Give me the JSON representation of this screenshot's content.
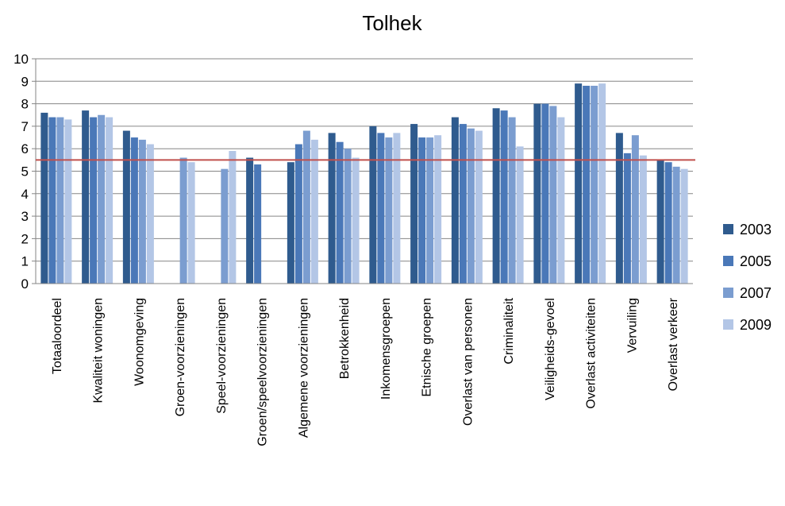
{
  "chart_data": {
    "type": "bar",
    "title": "Tolhek",
    "xlabel": "",
    "ylabel": "",
    "ylim": [
      0,
      10
    ],
    "yticks": [
      0,
      1,
      2,
      3,
      4,
      5,
      6,
      7,
      8,
      9,
      10
    ],
    "grid": true,
    "legend_position": "right",
    "reference_line": {
      "value": 5.5,
      "color": "#c0504d"
    },
    "categories": [
      "Totaaloordeel",
      "Kwaliteit woningen",
      "Woonomgeving",
      "Groen-voorzieningen",
      "Speel-voorzieningen",
      "Groen/speelvoorzieningen",
      "Algemene voorzieningen",
      "Betrokkenheid",
      "Inkomensgroepen",
      "Etnische groepen",
      "Overlast van personen",
      "Criminaliteit",
      "Veiligheids-gevoel",
      "Overlast activiteiten",
      "Vervuiling",
      "Overlast verkeer"
    ],
    "series": [
      {
        "name": "2003",
        "color": "#2f5b8e",
        "values": [
          7.6,
          7.7,
          6.8,
          null,
          null,
          5.6,
          5.4,
          6.7,
          7.0,
          7.1,
          7.4,
          7.8,
          8.0,
          8.9,
          6.7,
          5.5
        ]
      },
      {
        "name": "2005",
        "color": "#4a78b8",
        "values": [
          7.4,
          7.4,
          6.5,
          null,
          null,
          5.3,
          6.2,
          6.3,
          6.7,
          6.5,
          7.1,
          7.7,
          8.0,
          8.8,
          5.8,
          5.4
        ]
      },
      {
        "name": "2007",
        "color": "#7b9dd0",
        "values": [
          7.4,
          7.5,
          6.4,
          5.6,
          5.1,
          null,
          6.8,
          6.0,
          6.5,
          6.5,
          6.9,
          7.4,
          7.9,
          8.8,
          6.6,
          5.2
        ]
      },
      {
        "name": "2009",
        "color": "#b3c6e6",
        "values": [
          7.3,
          7.4,
          6.2,
          5.4,
          5.9,
          null,
          6.4,
          5.6,
          6.7,
          6.6,
          6.8,
          6.1,
          7.4,
          8.9,
          5.7,
          5.1
        ]
      }
    ]
  }
}
